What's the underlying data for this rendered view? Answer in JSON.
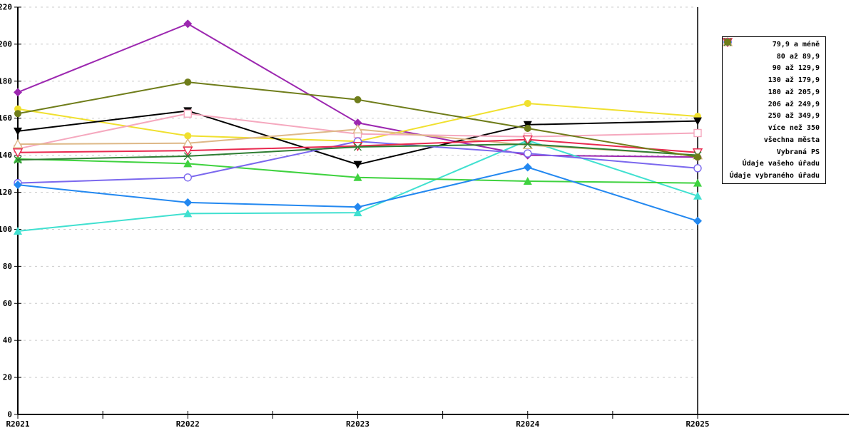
{
  "chart_data": {
    "type": "line",
    "title": "",
    "xlabel": "",
    "ylabel": "",
    "x_tick_labels": [
      "R2021",
      "R2022",
      "R2023",
      "R2024",
      "R2025"
    ],
    "y_ticks": [
      220,
      200,
      180,
      160,
      140,
      120,
      100,
      80,
      60,
      40,
      20,
      0
    ],
    "ylim": [
      0,
      220
    ],
    "grid": {
      "horizontal": "dashed",
      "color": "#CCCCCC"
    },
    "legend_position": "right",
    "series": [
      {
        "label": "79,9 a méně",
        "color": "#9C27B0",
        "marker": "diamond",
        "marker_style": "filled",
        "values": [
          174,
          211,
          157.5,
          140,
          139
        ]
      },
      {
        "label": "80 až 89,9",
        "color": "#F0E02E",
        "marker": "circle",
        "marker_style": "filled",
        "values": [
          165,
          150.5,
          147.5,
          168,
          161
        ]
      },
      {
        "label": "90 až 129,9",
        "color": "#40E0D0",
        "marker": "triangle-up",
        "marker_style": "filled",
        "values": [
          99,
          108.5,
          109,
          148,
          118
        ]
      },
      {
        "label": "130 až 179,9",
        "color": "#3FD23F",
        "marker": "triangle-up",
        "marker_style": "filled",
        "values": [
          138,
          135.5,
          128,
          126,
          125
        ]
      },
      {
        "label": "180 až 205,9",
        "color": "#000000",
        "marker": "triangle-down",
        "marker_style": "filled",
        "values": [
          153,
          164,
          135,
          156.5,
          158.5
        ]
      },
      {
        "label": "206 až 249,9",
        "color": "#F5A8BE",
        "marker": "square",
        "marker_style": "open",
        "values": [
          143.5,
          162.5,
          151.5,
          150,
          152
        ]
      },
      {
        "label": "250 až 349,9",
        "color": "#7B68EE",
        "marker": "circle",
        "marker_style": "open",
        "values": [
          125,
          128,
          147.5,
          141,
          133
        ]
      },
      {
        "label": "více než 350",
        "color": "#DEB887",
        "marker": "triangle-up",
        "marker_style": "open",
        "values": [
          146,
          146.5,
          154,
          145.5,
          140
        ]
      },
      {
        "label": "všechna města",
        "color": "#E8294F",
        "marker": "triangle-down",
        "marker_style": "open",
        "values": [
          141.5,
          142.5,
          145,
          148.5,
          141.5
        ]
      },
      {
        "label": "Vybraná PS",
        "color": "#2E7D32",
        "marker": "x-cross",
        "marker_style": "open",
        "values": [
          137.5,
          139.5,
          144.5,
          146,
          140
        ]
      },
      {
        "label": "Údaje vašeho úřadu",
        "color": "#2388F0",
        "marker": "diamond",
        "marker_style": "filled",
        "values": [
          124,
          114.5,
          112,
          133.5,
          104.5
        ]
      },
      {
        "label": "Údaje vybraného úřadu",
        "color": "#6F7D1A",
        "marker": "circle",
        "marker_style": "filled",
        "values": [
          162.5,
          179.5,
          170,
          154.5,
          139
        ]
      }
    ]
  }
}
